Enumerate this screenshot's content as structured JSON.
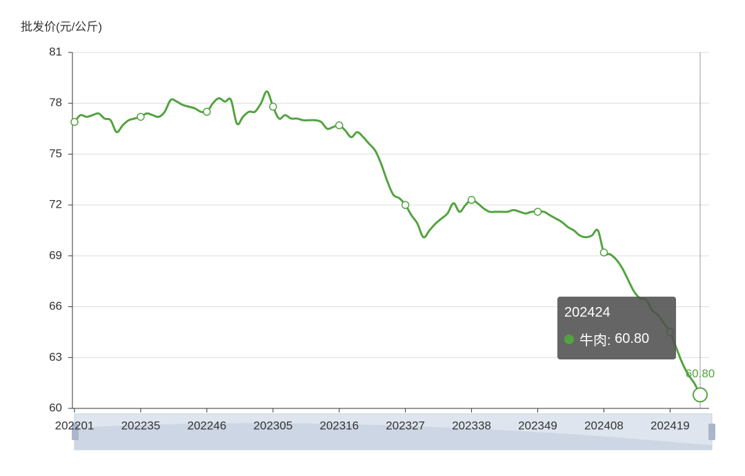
{
  "chart_data": {
    "type": "line",
    "y_axis_title": "批发价(元/公斤)",
    "categories": [
      "202201",
      null,
      null,
      null,
      null,
      null,
      null,
      null,
      null,
      null,
      null,
      "202235",
      null,
      null,
      null,
      null,
      null,
      null,
      null,
      null,
      null,
      null,
      "202246",
      null,
      null,
      null,
      null,
      null,
      null,
      null,
      null,
      null,
      null,
      "202305",
      null,
      null,
      null,
      null,
      null,
      null,
      null,
      null,
      null,
      null,
      "202316",
      null,
      null,
      null,
      null,
      null,
      null,
      null,
      null,
      null,
      null,
      "202327",
      null,
      null,
      null,
      null,
      null,
      null,
      null,
      null,
      null,
      null,
      "202338",
      null,
      null,
      null,
      null,
      null,
      null,
      null,
      null,
      null,
      null,
      "202349",
      null,
      null,
      null,
      null,
      null,
      null,
      null,
      null,
      null,
      null,
      "202408",
      null,
      null,
      null,
      null,
      null,
      null,
      null,
      null,
      null,
      null,
      "202419",
      null,
      null,
      null,
      null,
      "202424"
    ],
    "series": [
      {
        "name": "牛肉",
        "color": "#52a33f",
        "values": [
          76.9,
          77.3,
          77.2,
          77.3,
          77.4,
          77.1,
          77.0,
          76.3,
          76.7,
          77.0,
          77.1,
          77.2,
          77.4,
          77.3,
          77.2,
          77.5,
          78.2,
          78.1,
          77.9,
          77.8,
          77.7,
          77.5,
          77.5,
          78.0,
          78.3,
          78.1,
          78.2,
          76.8,
          77.2,
          77.5,
          77.5,
          78.0,
          78.7,
          77.8,
          77.1,
          77.3,
          77.1,
          77.1,
          77.0,
          77.0,
          77.0,
          76.9,
          76.5,
          76.6,
          76.7,
          76.4,
          76.0,
          76.3,
          76.0,
          75.6,
          75.2,
          74.4,
          73.4,
          72.6,
          72.4,
          72.0,
          71.4,
          70.9,
          70.1,
          70.5,
          70.9,
          71.2,
          71.5,
          72.1,
          71.6,
          72.0,
          72.3,
          72.1,
          71.8,
          71.6,
          71.6,
          71.6,
          71.6,
          71.7,
          71.6,
          71.5,
          71.6,
          71.6,
          71.6,
          71.4,
          71.2,
          71.0,
          70.7,
          70.5,
          70.2,
          70.1,
          70.2,
          70.5,
          69.2,
          69.1,
          68.8,
          68.3,
          67.6,
          66.9,
          66.5,
          66.4,
          65.8,
          65.5,
          65.0,
          64.5,
          63.6,
          62.7,
          62.0,
          61.5,
          60.8
        ],
        "value_labels": [
          null,
          null,
          null,
          null,
          null,
          null,
          null,
          null,
          null,
          null,
          null,
          null,
          null,
          null,
          null,
          null,
          null,
          null,
          null,
          null,
          null,
          null,
          null,
          null,
          null,
          null,
          null,
          null,
          null,
          null,
          null,
          null,
          null,
          null,
          null,
          null,
          null,
          null,
          null,
          null,
          null,
          null,
          null,
          null,
          null,
          null,
          null,
          null,
          null,
          null,
          null,
          null,
          null,
          null,
          null,
          null,
          null,
          null,
          null,
          null,
          null,
          null,
          null,
          null,
          null,
          null,
          null,
          null,
          null,
          null,
          null,
          null,
          null,
          null,
          null,
          null,
          null,
          null,
          null,
          null,
          null,
          null,
          null,
          null,
          null,
          null,
          null,
          null,
          null,
          null,
          null,
          null,
          null,
          null,
          null,
          null,
          null,
          null,
          null,
          null,
          null,
          null,
          null,
          null,
          "60.80"
        ]
      }
    ],
    "ylim": [
      60,
      81
    ],
    "yticks": [
      60,
      63,
      66,
      69,
      72,
      75,
      78,
      81
    ],
    "grid": true
  }
}
